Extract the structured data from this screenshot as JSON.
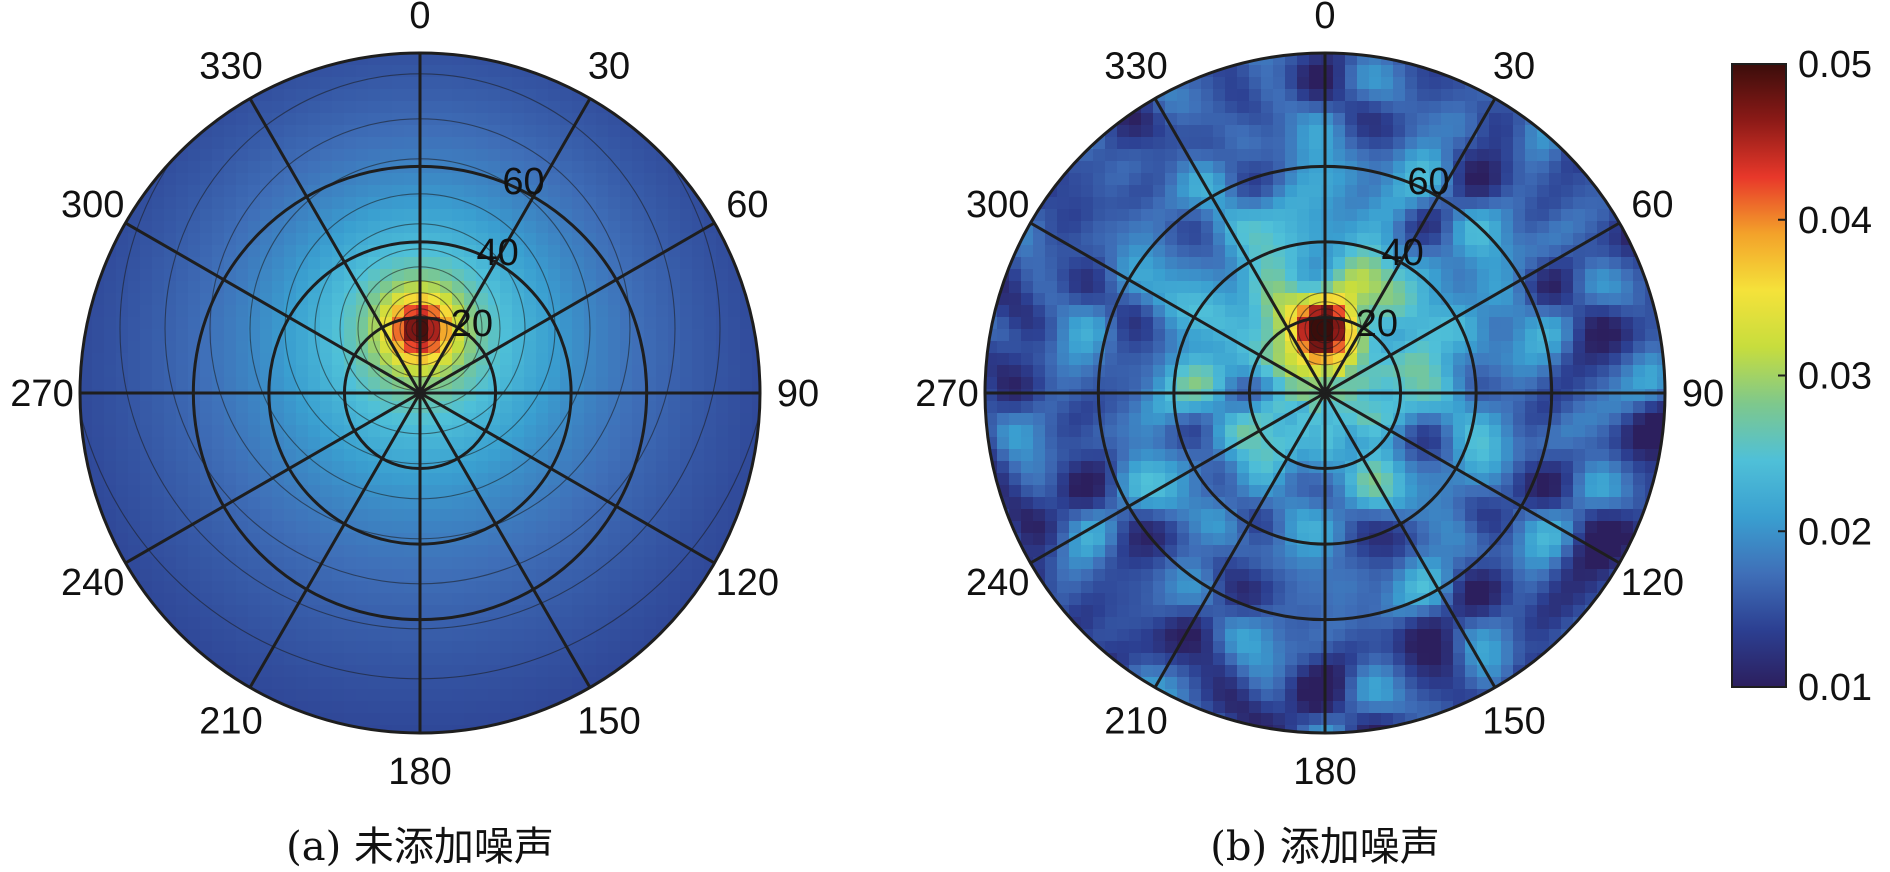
{
  "chart_data": [
    {
      "type": "heatmap",
      "subtype": "polar-contour",
      "panel": "a",
      "caption": "(a) 未添加噪声",
      "angular_ticks": [
        "0",
        "30",
        "60",
        "90",
        "120",
        "150",
        "180",
        "210",
        "240",
        "270",
        "300",
        "330"
      ],
      "radial_ticks": [
        "20",
        "40",
        "60"
      ],
      "radial_range": [
        0,
        90
      ],
      "peak": {
        "azimuth": 0,
        "radius": 17,
        "value": 0.05
      },
      "background_value": 0.016,
      "field_description": "single smooth peak near azimuth 0, values decreasing radially outward",
      "colorbar": {
        "min": 0.01,
        "max": 0.05
      },
      "grid": true
    },
    {
      "type": "heatmap",
      "subtype": "polar-contour",
      "panel": "b",
      "caption": "(b) 添加噪声",
      "angular_ticks": [
        "0",
        "30",
        "60",
        "90",
        "120",
        "150",
        "180",
        "210",
        "240",
        "270",
        "300",
        "330"
      ],
      "radial_ticks": [
        "20",
        "40",
        "60"
      ],
      "radial_range": [
        0,
        90
      ],
      "peak": {
        "azimuth": 0,
        "radius": 17,
        "value": 0.05
      },
      "background_value": 0.016,
      "field_description": "same peak near azimuth 0 with noisy speckled contours across the disk",
      "colorbar": {
        "min": 0.01,
        "max": 0.05
      },
      "grid": true
    }
  ],
  "colorbar": {
    "ticks": [
      "0.05",
      "0.04",
      "0.03",
      "0.02",
      "0.01"
    ],
    "min": 0.01,
    "max": 0.05,
    "colormap": "jet",
    "colors": [
      "#2c1f5e",
      "#2c3f91",
      "#3f6fb8",
      "#3a9fd0",
      "#4fc0d8",
      "#7ec88c",
      "#c7dd3d",
      "#f5e23a",
      "#f3a22a",
      "#e8382a",
      "#8c1a17",
      "#3b0d0b"
    ]
  },
  "captions": {
    "a": "(a) 未添加噪声",
    "b": "(b) 添加噪声"
  }
}
